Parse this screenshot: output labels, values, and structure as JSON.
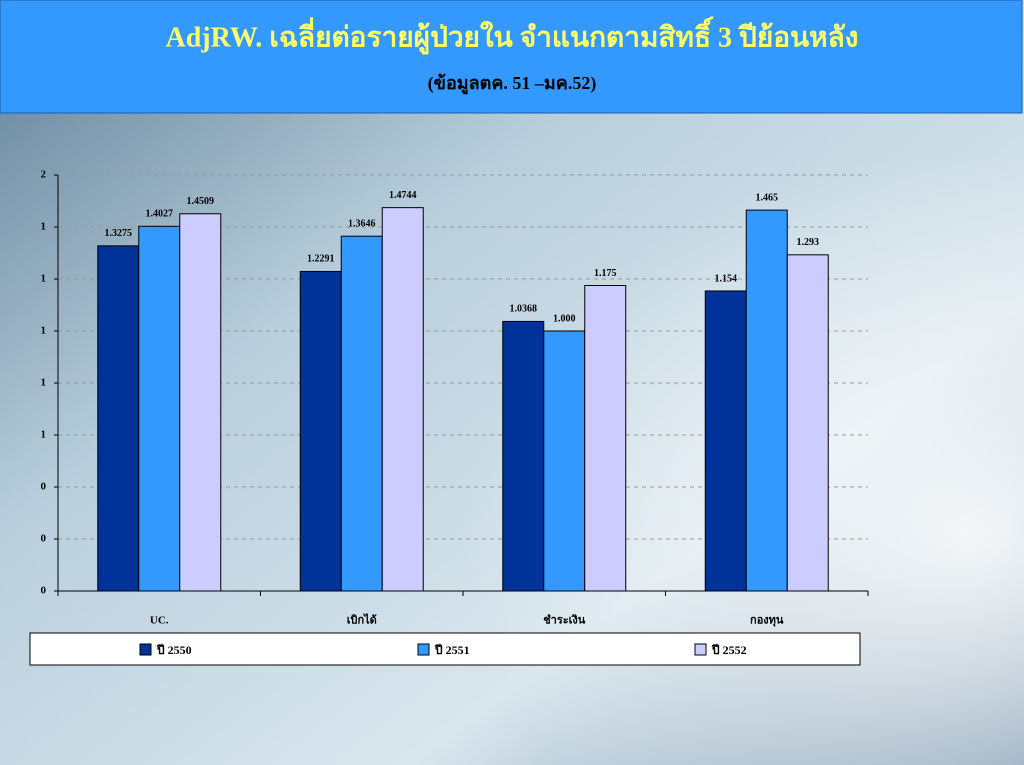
{
  "chart_data": {
    "type": "bar",
    "title": "AdjRW. เฉลี่ยต่อรายผู้ป่วยใน จำแนกตามสิทธิ์ 3 ปีย้อนหลัง",
    "subtitle": "(ข้อมูลตค. 51 –มค.52)",
    "categories": [
      "UC.",
      "เบิกได้",
      "ชำระเงิน",
      "กองทุน"
    ],
    "series": [
      {
        "name": "ปี 2550",
        "color": "#003399",
        "values": [
          1.3275,
          1.2291,
          1.0368,
          1.154
        ]
      },
      {
        "name": "ปี 2551",
        "color": "#3399ff",
        "values": [
          1.4027,
          1.3646,
          1.0,
          1.465
        ],
        "value_labels": [
          "1.4027",
          "1.3646",
          "1.000",
          "1.465"
        ]
      },
      {
        "name": "ปี 2552",
        "color": "#ccccff",
        "values": [
          1.4509,
          1.4744,
          1.175,
          1.293
        ]
      }
    ],
    "ylim": [
      0,
      1.6
    ],
    "yticks": [
      {
        "value": 0,
        "label": "0"
      },
      {
        "value": 0.2,
        "label": "0"
      },
      {
        "value": 0.4,
        "label": "0"
      },
      {
        "value": 0.6,
        "label": "1"
      },
      {
        "value": 0.8,
        "label": "1"
      },
      {
        "value": 1.0,
        "label": "1"
      },
      {
        "value": 1.2,
        "label": "1"
      },
      {
        "value": 1.4,
        "label": "1"
      },
      {
        "value": 1.6,
        "label": "2"
      }
    ],
    "grid": true
  }
}
